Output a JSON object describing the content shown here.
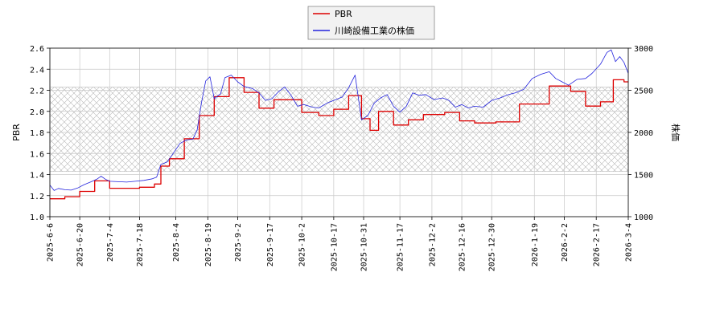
{
  "chart_data": {
    "type": "line",
    "legend": {
      "placement": "top-center",
      "entries": [
        "PBR",
        "川崎設備工業の株価"
      ]
    },
    "y_left": {
      "label": "PBR",
      "range": [
        1.0,
        2.6
      ],
      "ticks": [
        "1.0",
        "1.2",
        "1.4",
        "1.6",
        "1.8",
        "2.0",
        "2.2",
        "2.4",
        "2.6"
      ]
    },
    "y_right": {
      "label": "株価",
      "range": [
        1000,
        3000
      ],
      "ticks": [
        "1000",
        "1500",
        "2000",
        "2500",
        "3000"
      ]
    },
    "x_range": [
      "2025-06-06",
      "2026-03-04"
    ],
    "x_ticks": [
      "2025-6-6",
      "2025-6-20",
      "2025-7-4",
      "2025-7-18",
      "2025-8-4",
      "2025-8-19",
      "2025-9-2",
      "2025-9-17",
      "2025-10-2",
      "2025-10-17",
      "2025-10-31",
      "2025-11-17",
      "2025-12-2",
      "2025-12-16",
      "2025-12-30",
      "2026-1-19",
      "2026-2-2",
      "2026-2-17",
      "2026-3-4"
    ],
    "grid": true,
    "band": {
      "axis": "left",
      "from": 1.43,
      "to": 2.23,
      "pattern": "crosshatch"
    },
    "series": [
      {
        "name": "PBR",
        "axis": "left",
        "color": "#dd0000",
        "step": true,
        "points": [
          [
            "2025-06-06",
            1.17
          ],
          [
            "2025-06-13",
            1.19
          ],
          [
            "2025-06-20",
            1.24
          ],
          [
            "2025-06-27",
            1.34
          ],
          [
            "2025-07-04",
            1.27
          ],
          [
            "2025-07-18",
            1.28
          ],
          [
            "2025-07-25",
            1.31
          ],
          [
            "2025-07-28",
            1.48
          ],
          [
            "2025-08-01",
            1.55
          ],
          [
            "2025-08-08",
            1.74
          ],
          [
            "2025-08-15",
            1.96
          ],
          [
            "2025-08-22",
            2.14
          ],
          [
            "2025-08-29",
            2.32
          ],
          [
            "2025-09-05",
            2.18
          ],
          [
            "2025-09-12",
            2.03
          ],
          [
            "2025-09-19",
            2.11
          ],
          [
            "2025-10-02",
            1.99
          ],
          [
            "2025-10-10",
            1.96
          ],
          [
            "2025-10-17",
            2.02
          ],
          [
            "2025-10-24",
            2.15
          ],
          [
            "2025-10-30",
            1.93
          ],
          [
            "2025-11-03",
            1.82
          ],
          [
            "2025-11-07",
            2.0
          ],
          [
            "2025-11-14",
            1.87
          ],
          [
            "2025-11-21",
            1.92
          ],
          [
            "2025-11-28",
            1.97
          ],
          [
            "2025-12-08",
            1.99
          ],
          [
            "2025-12-15",
            1.91
          ],
          [
            "2025-12-22",
            1.89
          ],
          [
            "2026-01-01",
            1.9
          ],
          [
            "2026-01-12",
            2.07
          ],
          [
            "2026-01-26",
            2.24
          ],
          [
            "2026-02-05",
            2.19
          ],
          [
            "2026-02-12",
            2.05
          ],
          [
            "2026-02-19",
            2.09
          ],
          [
            "2026-02-25",
            2.3
          ],
          [
            "2026-03-02",
            2.28
          ],
          [
            "2026-03-04",
            2.28
          ]
        ]
      },
      {
        "name": "川崎設備工業の株価",
        "axis": "right",
        "color": "#2222dd",
        "step": false,
        "points": [
          [
            "2025-06-06",
            1375
          ],
          [
            "2025-06-08",
            1310
          ],
          [
            "2025-06-10",
            1335
          ],
          [
            "2025-06-13",
            1320
          ],
          [
            "2025-06-16",
            1315
          ],
          [
            "2025-06-19",
            1340
          ],
          [
            "2025-06-22",
            1380
          ],
          [
            "2025-06-25",
            1410
          ],
          [
            "2025-06-28",
            1445
          ],
          [
            "2025-06-30",
            1480
          ],
          [
            "2025-07-02",
            1445
          ],
          [
            "2025-07-04",
            1420
          ],
          [
            "2025-07-08",
            1415
          ],
          [
            "2025-07-12",
            1410
          ],
          [
            "2025-07-16",
            1420
          ],
          [
            "2025-07-20",
            1430
          ],
          [
            "2025-07-24",
            1450
          ],
          [
            "2025-07-26",
            1470
          ],
          [
            "2025-07-28",
            1620
          ],
          [
            "2025-07-31",
            1650
          ],
          [
            "2025-08-03",
            1760
          ],
          [
            "2025-08-06",
            1870
          ],
          [
            "2025-08-09",
            1910
          ],
          [
            "2025-08-12",
            1920
          ],
          [
            "2025-08-14",
            2030
          ],
          [
            "2025-08-16",
            2350
          ],
          [
            "2025-08-18",
            2610
          ],
          [
            "2025-08-20",
            2660
          ],
          [
            "2025-08-22",
            2400
          ],
          [
            "2025-08-25",
            2460
          ],
          [
            "2025-08-27",
            2650
          ],
          [
            "2025-08-30",
            2680
          ],
          [
            "2025-09-02",
            2600
          ],
          [
            "2025-09-05",
            2545
          ],
          [
            "2025-09-09",
            2520
          ],
          [
            "2025-09-12",
            2470
          ],
          [
            "2025-09-15",
            2380
          ],
          [
            "2025-09-18",
            2400
          ],
          [
            "2025-09-21",
            2480
          ],
          [
            "2025-09-24",
            2540
          ],
          [
            "2025-09-27",
            2440
          ],
          [
            "2025-09-30",
            2310
          ],
          [
            "2025-10-03",
            2330
          ],
          [
            "2025-10-07",
            2300
          ],
          [
            "2025-10-10",
            2290
          ],
          [
            "2025-10-14",
            2350
          ],
          [
            "2025-10-17",
            2380
          ],
          [
            "2025-10-21",
            2420
          ],
          [
            "2025-10-24",
            2530
          ],
          [
            "2025-10-27",
            2680
          ],
          [
            "2025-10-30",
            2150
          ],
          [
            "2025-11-02",
            2200
          ],
          [
            "2025-11-05",
            2350
          ],
          [
            "2025-11-08",
            2410
          ],
          [
            "2025-11-11",
            2450
          ],
          [
            "2025-11-14",
            2310
          ],
          [
            "2025-11-17",
            2240
          ],
          [
            "2025-11-20",
            2310
          ],
          [
            "2025-11-23",
            2470
          ],
          [
            "2025-11-26",
            2440
          ],
          [
            "2025-11-29",
            2450
          ],
          [
            "2025-12-03",
            2390
          ],
          [
            "2025-12-07",
            2410
          ],
          [
            "2025-12-10",
            2380
          ],
          [
            "2025-12-13",
            2300
          ],
          [
            "2025-12-16",
            2330
          ],
          [
            "2025-12-19",
            2290
          ],
          [
            "2025-12-22",
            2310
          ],
          [
            "2025-12-26",
            2300
          ],
          [
            "2025-12-30",
            2380
          ],
          [
            "2026-01-03",
            2410
          ],
          [
            "2026-01-07",
            2450
          ],
          [
            "2026-01-10",
            2470
          ],
          [
            "2026-01-14",
            2510
          ],
          [
            "2026-01-18",
            2640
          ],
          [
            "2026-01-22",
            2690
          ],
          [
            "2026-01-26",
            2720
          ],
          [
            "2026-01-29",
            2640
          ],
          [
            "2026-02-01",
            2600
          ],
          [
            "2026-02-04",
            2560
          ],
          [
            "2026-02-08",
            2630
          ],
          [
            "2026-02-12",
            2640
          ],
          [
            "2026-02-15",
            2700
          ],
          [
            "2026-02-19",
            2810
          ],
          [
            "2026-02-22",
            2950
          ],
          [
            "2026-02-24",
            2980
          ],
          [
            "2026-02-26",
            2840
          ],
          [
            "2026-02-28",
            2900
          ],
          [
            "2026-03-02",
            2830
          ],
          [
            "2026-03-04",
            2700
          ]
        ]
      }
    ]
  }
}
